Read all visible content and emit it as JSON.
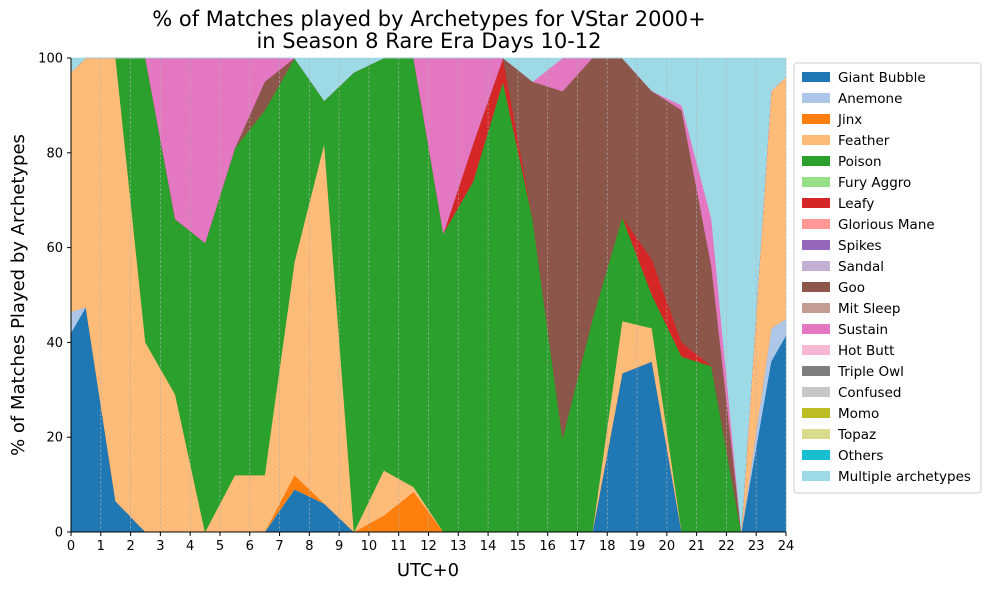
{
  "chart_data": {
    "type": "area",
    "stacked": true,
    "title": [
      "% of Matches played by Archetypes for VStar 2000+",
      "in Season 8 Rare Era Days 10-12"
    ],
    "xlabel": "UTC+0",
    "ylabel": "% of Matches Played by Archetypes",
    "xlim": [
      0,
      24
    ],
    "ylim": [
      0,
      100
    ],
    "xticks": [
      "0",
      "1",
      "2",
      "3",
      "4",
      "5",
      "6",
      "7",
      "8",
      "9",
      "10",
      "11",
      "12",
      "13",
      "14",
      "15",
      "16",
      "17",
      "18",
      "19",
      "20",
      "21",
      "22",
      "23",
      "24"
    ],
    "yticks": [
      "0",
      "20",
      "40",
      "60",
      "80",
      "100"
    ],
    "grid": "vertical dashed",
    "legend_position": "right",
    "x": [
      0,
      0.5,
      1.5,
      2.5,
      3.5,
      4.5,
      5.5,
      6.5,
      7.5,
      8.5,
      9.5,
      10.5,
      11.5,
      12.5,
      13.5,
      14.5,
      15.5,
      16.5,
      17.5,
      18.5,
      19.5,
      20.5,
      21.5,
      22.5,
      23.5,
      24
    ],
    "series": [
      {
        "name": "Giant Bubble",
        "color": "#1f77b4",
        "values": [
          42,
          47.5,
          6.5,
          0,
          0,
          0,
          0,
          0,
          9,
          6,
          0,
          0,
          0,
          0,
          0,
          0,
          0,
          0,
          0,
          33.5,
          36,
          0,
          0,
          0,
          36,
          41.5
        ]
      },
      {
        "name": "Anemone",
        "color": "#aec7e8",
        "values": [
          4.5,
          0,
          0,
          0,
          0,
          0,
          0,
          0,
          0,
          0,
          0,
          0,
          0,
          0,
          0,
          0,
          0,
          0,
          0,
          0,
          0,
          0,
          0,
          0,
          7,
          3.5
        ]
      },
      {
        "name": "Jinx",
        "color": "#ff7f0e",
        "values": [
          0,
          0,
          0,
          0,
          0,
          0,
          0,
          0,
          3,
          0,
          0,
          3.5,
          8.5,
          0,
          0,
          0,
          0,
          0,
          0,
          0,
          0,
          0,
          0,
          0,
          0,
          0
        ]
      },
      {
        "name": "Feather",
        "color": "#ffbb78",
        "values": [
          50.5,
          52.5,
          93.5,
          40,
          29,
          0,
          12,
          12,
          45,
          76,
          0,
          9.5,
          1,
          0,
          0,
          0,
          0,
          0,
          0,
          11,
          7,
          0,
          0,
          0,
          50,
          51
        ]
      },
      {
        "name": "Poison",
        "color": "#2ca02c",
        "values": [
          0,
          0,
          0,
          60,
          37,
          61,
          69,
          77,
          43,
          9,
          97,
          87,
          90.5,
          63,
          74,
          95,
          66,
          20,
          45,
          22,
          7,
          37,
          35,
          0,
          0,
          0
        ]
      },
      {
        "name": "Fury Aggro",
        "color": "#98df8a",
        "values": [
          0,
          0,
          0,
          0,
          0,
          0,
          0,
          0,
          0,
          0,
          0,
          0,
          0,
          0,
          0,
          0,
          0,
          0,
          0,
          0,
          0,
          0,
          0,
          0,
          0,
          0
        ]
      },
      {
        "name": "Leafy",
        "color": "#d62728",
        "values": [
          0,
          0,
          0,
          0,
          0,
          0,
          0,
          0,
          0,
          0,
          0,
          0,
          0,
          0,
          8,
          5,
          0,
          0,
          0,
          0,
          7.5,
          3,
          0,
          0,
          0,
          0
        ]
      },
      {
        "name": "Glorious Mane",
        "color": "#ff9896",
        "values": [
          0,
          0,
          0,
          0,
          0,
          0,
          0,
          0,
          0,
          0,
          0,
          0,
          0,
          0,
          0,
          0,
          0,
          0,
          0,
          0,
          0,
          0,
          0,
          0,
          0,
          0
        ]
      },
      {
        "name": "Spikes",
        "color": "#9467bd",
        "values": [
          0,
          0,
          0,
          0,
          0,
          0,
          0,
          0,
          0,
          0,
          0,
          0,
          0,
          0,
          0,
          0,
          0,
          0,
          0,
          0,
          0,
          0,
          0,
          0,
          0,
          0
        ]
      },
      {
        "name": "Sandal",
        "color": "#c5b0d5",
        "values": [
          0,
          0,
          0,
          0,
          0,
          0,
          0,
          0,
          0,
          0,
          0,
          0,
          0,
          0,
          0,
          0,
          0,
          0,
          0,
          0,
          0,
          0,
          0,
          0,
          0,
          0
        ]
      },
      {
        "name": "Goo",
        "color": "#8c564b",
        "values": [
          0,
          0,
          0,
          0,
          0,
          0,
          0,
          6,
          0,
          0,
          0,
          0,
          0,
          0,
          0,
          0,
          29,
          73,
          55,
          33.5,
          35.5,
          49,
          21,
          0,
          0,
          0
        ]
      },
      {
        "name": "Mit Sleep",
        "color": "#c49c94",
        "values": [
          0,
          0,
          0,
          0,
          0,
          0,
          0,
          0,
          0,
          0,
          0,
          0,
          0,
          0,
          0,
          0,
          0,
          0,
          0,
          0,
          0,
          0,
          0,
          0,
          0,
          0
        ]
      },
      {
        "name": "Sustain",
        "color": "#e377c2",
        "values": [
          0,
          0,
          0,
          0,
          34,
          39,
          19,
          5,
          0,
          0,
          0,
          0,
          0,
          37,
          18,
          0,
          0,
          7,
          0,
          0,
          0,
          1,
          10,
          0,
          0,
          0
        ]
      },
      {
        "name": "Hot Butt",
        "color": "#f7b6d2",
        "values": [
          0,
          0,
          0,
          0,
          0,
          0,
          0,
          0,
          0,
          0,
          0,
          0,
          0,
          0,
          0,
          0,
          0,
          0,
          0,
          0,
          0,
          0,
          0,
          0,
          0,
          0
        ]
      },
      {
        "name": "Triple Owl",
        "color": "#7f7f7f",
        "values": [
          0,
          0,
          0,
          0,
          0,
          0,
          0,
          0,
          0,
          0,
          0,
          0,
          0,
          0,
          0,
          0,
          0,
          0,
          0,
          0,
          0,
          0,
          0,
          0,
          0,
          0
        ]
      },
      {
        "name": "Confused",
        "color": "#c7c7c7",
        "values": [
          0,
          0,
          0,
          0,
          0,
          0,
          0,
          0,
          0,
          0,
          0,
          0,
          0,
          0,
          0,
          0,
          0,
          0,
          0,
          0,
          0,
          0,
          0,
          0,
          0,
          0
        ]
      },
      {
        "name": "Momo",
        "color": "#bcbd22",
        "values": [
          0,
          0,
          0,
          0,
          0,
          0,
          0,
          0,
          0,
          0,
          0,
          0,
          0,
          0,
          0,
          0,
          0,
          0,
          0,
          0,
          0,
          0,
          0,
          0,
          0,
          0
        ]
      },
      {
        "name": "Topaz",
        "color": "#dbdb8d",
        "values": [
          0,
          0,
          0,
          0,
          0,
          0,
          0,
          0,
          0,
          0,
          0,
          0,
          0,
          0,
          0,
          0,
          0,
          0,
          0,
          0,
          0,
          0,
          0,
          0,
          0,
          0
        ]
      },
      {
        "name": "Others",
        "color": "#17becf",
        "values": [
          0,
          0,
          0,
          0,
          0,
          0,
          0,
          0,
          0,
          0,
          0,
          0,
          0,
          0,
          0,
          0,
          0,
          0,
          0,
          0,
          0,
          0,
          0,
          0,
          0,
          0
        ]
      },
      {
        "name": "Multiple archetypes",
        "color": "#9edae5",
        "values": [
          3,
          0,
          0,
          0,
          0,
          0,
          0,
          0,
          0,
          9,
          3,
          0,
          0,
          0,
          0,
          0,
          5,
          0,
          0,
          0,
          7,
          10,
          34,
          100,
          7,
          4
        ]
      }
    ]
  }
}
